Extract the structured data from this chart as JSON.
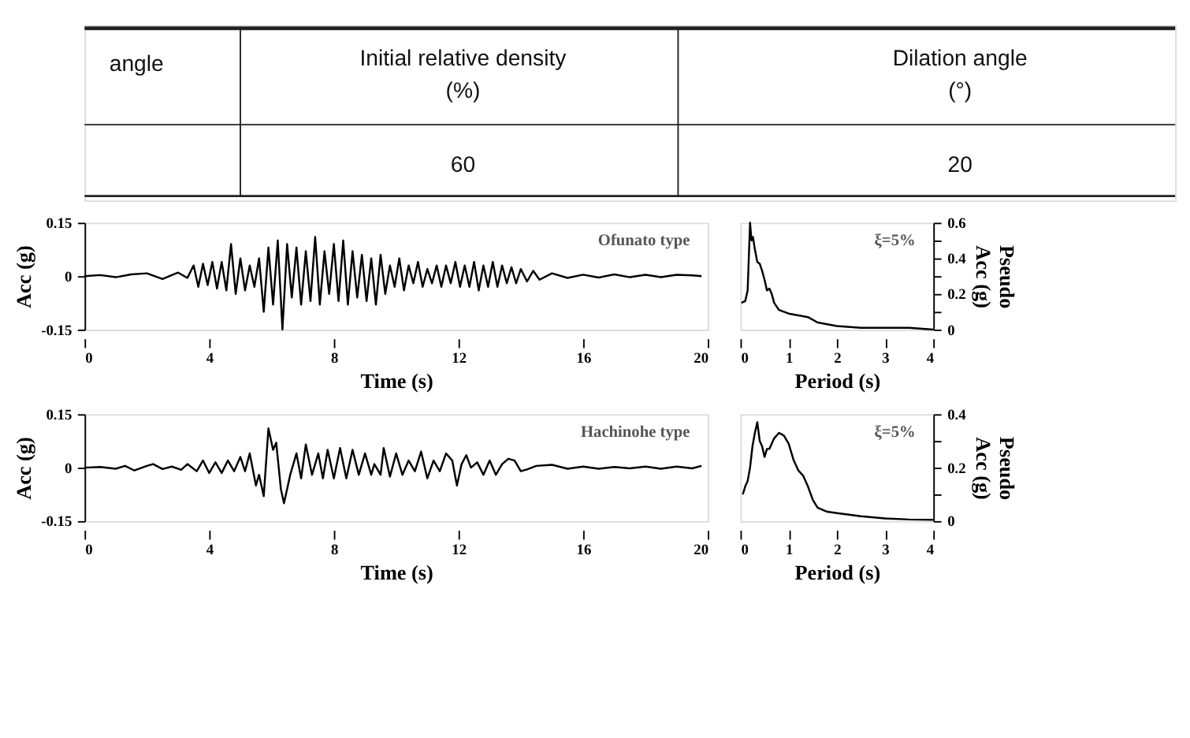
{
  "chart_data": [
    {
      "type": "other",
      "annotations": [
        "angle",
        "Initial relative density",
        "(%)",
        "Dilation angle",
        "(°)",
        "60",
        "20"
      ]
    },
    {
      "type": "line",
      "xlabel": "Time (s)",
      "ylabel": "Acc (g)",
      "annotations": [
        "Ofunato type"
      ],
      "xlim": [
        0,
        20
      ],
      "xticks": [
        0,
        4,
        8,
        12,
        16,
        20
      ],
      "ylim": [
        -0.15,
        0.15
      ],
      "yticks": [
        -0.15,
        0,
        0.15
      ],
      "grid": false,
      "marker": "none",
      "line_style": "solid",
      "series": [
        {
          "color": "#000000",
          "x": [
            0,
            0.5,
            1,
            1.5,
            2,
            2.5,
            3,
            3.3,
            3.5,
            3.65,
            3.8,
            3.95,
            4.1,
            4.25,
            4.4,
            4.55,
            4.7,
            4.85,
            5.0,
            5.15,
            5.3,
            5.45,
            5.6,
            5.75,
            5.9,
            6.05,
            6.2,
            6.35,
            6.5,
            6.65,
            6.8,
            6.95,
            7.1,
            7.25,
            7.4,
            7.55,
            7.7,
            7.85,
            8.0,
            8.15,
            8.3,
            8.45,
            8.6,
            8.75,
            8.9,
            9.05,
            9.2,
            9.35,
            9.5,
            9.65,
            9.8,
            9.95,
            10.1,
            10.25,
            10.4,
            10.55,
            10.7,
            10.85,
            11.0,
            11.15,
            11.3,
            11.45,
            11.6,
            11.75,
            11.9,
            12.05,
            12.2,
            12.35,
            12.5,
            12.65,
            12.8,
            12.95,
            13.1,
            13.25,
            13.4,
            13.55,
            13.7,
            13.85,
            14.0,
            14.2,
            14.4,
            14.6,
            15,
            15.5,
            16,
            16.5,
            17,
            17.5,
            18,
            18.5,
            19,
            19.5,
            19.8
          ],
          "values": [
            0,
            0.003,
            -0.003,
            0.005,
            0.008,
            -0.008,
            0.01,
            -0.005,
            0.03,
            -0.03,
            0.035,
            -0.025,
            0.04,
            -0.035,
            0.04,
            -0.04,
            0.09,
            -0.05,
            0.05,
            -0.04,
            0.03,
            -0.03,
            0.05,
            -0.1,
            0.08,
            -0.08,
            0.1,
            -0.15,
            0.09,
            -0.06,
            0.08,
            -0.08,
            0.07,
            -0.07,
            0.11,
            -0.08,
            0.07,
            -0.05,
            0.09,
            -0.07,
            0.1,
            -0.08,
            0.07,
            -0.06,
            0.06,
            -0.07,
            0.05,
            -0.08,
            0.06,
            -0.05,
            0.03,
            -0.03,
            0.05,
            -0.04,
            0.03,
            -0.02,
            0.04,
            -0.03,
            0.02,
            -0.02,
            0.03,
            -0.03,
            0.03,
            -0.02,
            0.04,
            -0.03,
            0.03,
            -0.03,
            0.04,
            -0.04,
            0.03,
            -0.03,
            0.04,
            -0.03,
            0.03,
            -0.02,
            0.025,
            -0.02,
            0.02,
            -0.015,
            0.015,
            -0.01,
            0.008,
            -0.005,
            0.004,
            -0.004,
            0.005,
            -0.003,
            0.004,
            -0.003,
            0.004,
            0.002,
            0
          ]
        }
      ]
    },
    {
      "type": "line",
      "xlabel": "Period (s)",
      "y2label": "Pseudo Acc (g)",
      "annotations": [
        "ξ=5%"
      ],
      "xlim": [
        0,
        4
      ],
      "xticks": [
        0,
        1,
        2,
        3,
        4
      ],
      "y2lim": [
        0,
        0.6
      ],
      "y2ticks": [
        0,
        {
          "value": 0.1,
          "label": null
        },
        0.2,
        {
          "value": 0.3,
          "label": null
        },
        0.4,
        {
          "value": 0.5,
          "label": null
        },
        0.6
      ],
      "grid": false,
      "marker": "none",
      "line_style": "solid",
      "series": [
        {
          "color": "#000000",
          "axis": "y2",
          "x": [
            0.02,
            0.1,
            0.15,
            0.2,
            0.23,
            0.26,
            0.3,
            0.35,
            0.4,
            0.45,
            0.5,
            0.55,
            0.6,
            0.65,
            0.7,
            0.8,
            0.9,
            1.0,
            1.2,
            1.4,
            1.6,
            1.8,
            2.0,
            2.5,
            3,
            3.5,
            4
          ],
          "values": [
            0.15,
            0.16,
            0.22,
            0.6,
            0.5,
            0.52,
            0.45,
            0.38,
            0.37,
            0.33,
            0.28,
            0.22,
            0.23,
            0.2,
            0.15,
            0.11,
            0.1,
            0.09,
            0.08,
            0.07,
            0.04,
            0.03,
            0.02,
            0.01,
            0.01,
            0.01,
            0.0
          ]
        }
      ]
    },
    {
      "type": "line",
      "xlabel": "Time (s)",
      "ylabel": "Acc (g)",
      "annotations": [
        "Hachinohe type"
      ],
      "xlim": [
        0,
        20
      ],
      "xticks": [
        0,
        4,
        8,
        12,
        16,
        20
      ],
      "ylim": [
        -0.15,
        0.15
      ],
      "yticks": [
        -0.15,
        0,
        0.15
      ],
      "grid": false,
      "marker": "none",
      "line_style": "solid",
      "series": [
        {
          "color": "#000000",
          "x": [
            0,
            0.5,
            1,
            1.3,
            1.6,
            2,
            2.2,
            2.5,
            2.8,
            3.1,
            3.3,
            3.6,
            3.8,
            4.0,
            4.2,
            4.4,
            4.6,
            4.8,
            5.0,
            5.15,
            5.3,
            5.5,
            5.6,
            5.75,
            5.9,
            6.05,
            6.15,
            6.3,
            6.4,
            6.6,
            6.8,
            6.95,
            7.1,
            7.3,
            7.5,
            7.65,
            7.8,
            8.0,
            8.2,
            8.4,
            8.6,
            8.8,
            9.0,
            9.2,
            9.3,
            9.5,
            9.6,
            9.8,
            10.0,
            10.2,
            10.4,
            10.6,
            10.8,
            11.0,
            11.2,
            11.4,
            11.6,
            11.8,
            11.95,
            12.1,
            12.25,
            12.4,
            12.6,
            12.8,
            13.0,
            13.2,
            13.4,
            13.6,
            13.8,
            14.0,
            14.2,
            14.5,
            15,
            15.5,
            16,
            16.5,
            17,
            17.5,
            18,
            18.5,
            19,
            19.5,
            19.8
          ],
          "values": [
            0,
            0.002,
            -0.003,
            0.005,
            -0.008,
            0.005,
            0.01,
            -0.004,
            0.003,
            -0.006,
            0.01,
            -0.01,
            0.02,
            -0.015,
            0.015,
            -0.015,
            0.02,
            -0.01,
            0.03,
            -0.01,
            0.04,
            -0.05,
            -0.02,
            -0.08,
            0.11,
            0.05,
            0.07,
            -0.06,
            -0.1,
            -0.02,
            0.04,
            -0.03,
            0.065,
            -0.02,
            0.04,
            -0.03,
            0.05,
            -0.03,
            0.055,
            -0.03,
            0.05,
            -0.02,
            0.04,
            -0.02,
            0.01,
            -0.02,
            0.055,
            -0.025,
            0.04,
            -0.02,
            0.02,
            -0.01,
            0.045,
            -0.03,
            0.02,
            -0.01,
            0.04,
            0.02,
            -0.05,
            0.01,
            0.035,
            0,
            0.015,
            -0.02,
            0.02,
            -0.02,
            0.01,
            0.025,
            0.02,
            -0.01,
            -0.005,
            0.005,
            0.008,
            -0.003,
            0.003,
            -0.003,
            0.002,
            -0.002,
            0.003,
            -0.003,
            0.003,
            -0.002,
            0.005
          ]
        }
      ]
    },
    {
      "type": "line",
      "xlabel": "Period (s)",
      "y2label": "Pseudo Acc (g)",
      "annotations": [
        "ξ=5%"
      ],
      "xlim": [
        0,
        4
      ],
      "xticks": [
        0,
        1,
        2,
        3,
        4
      ],
      "y2lim": [
        0,
        0.4
      ],
      "y2ticks": [
        0,
        {
          "value": 0.1,
          "label": null
        },
        0.2,
        {
          "value": 0.3,
          "label": null
        },
        0.4
      ],
      "grid": false,
      "marker": "none",
      "line_style": "solid",
      "series": [
        {
          "color": "#000000",
          "axis": "y2",
          "x": [
            0.05,
            0.1,
            0.15,
            0.2,
            0.25,
            0.3,
            0.35,
            0.4,
            0.45,
            0.5,
            0.55,
            0.6,
            0.7,
            0.8,
            0.9,
            1.0,
            1.1,
            1.2,
            1.3,
            1.4,
            1.5,
            1.6,
            1.8,
            2.0,
            2.5,
            3.0,
            3.5,
            4.0
          ],
          "values": [
            0.1,
            0.13,
            0.15,
            0.2,
            0.28,
            0.33,
            0.37,
            0.3,
            0.28,
            0.24,
            0.27,
            0.27,
            0.31,
            0.33,
            0.32,
            0.29,
            0.23,
            0.19,
            0.17,
            0.13,
            0.08,
            0.05,
            0.035,
            0.03,
            0.018,
            0.01,
            0.006,
            0.005
          ]
        }
      ]
    }
  ]
}
